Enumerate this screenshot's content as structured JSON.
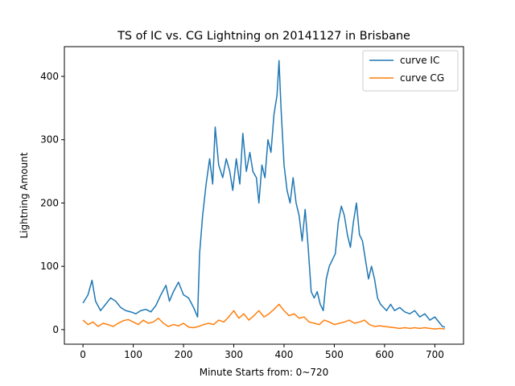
{
  "chart_data": {
    "type": "line",
    "title": "TS of IC vs. CG Lightning on 20141127 in Brisbane",
    "xlabel": "Minute Starts from: 0~720",
    "ylabel": "Lightning Amount",
    "xlim": [
      -37,
      757
    ],
    "ylim": [
      -23,
      447
    ],
    "xticks": [
      0,
      100,
      200,
      300,
      400,
      500,
      600,
      700
    ],
    "yticks": [
      0,
      100,
      200,
      300,
      400
    ],
    "grid": false,
    "legend": "top-right",
    "series": [
      {
        "name": "curve IC",
        "color": "#1f77b4",
        "points": [
          [
            0,
            42
          ],
          [
            10,
            55
          ],
          [
            18,
            78
          ],
          [
            25,
            45
          ],
          [
            35,
            30
          ],
          [
            45,
            40
          ],
          [
            55,
            50
          ],
          [
            65,
            45
          ],
          [
            75,
            35
          ],
          [
            85,
            30
          ],
          [
            95,
            28
          ],
          [
            105,
            25
          ],
          [
            115,
            30
          ],
          [
            125,
            32
          ],
          [
            135,
            28
          ],
          [
            145,
            38
          ],
          [
            155,
            55
          ],
          [
            165,
            70
          ],
          [
            172,
            45
          ],
          [
            180,
            60
          ],
          [
            190,
            75
          ],
          [
            200,
            55
          ],
          [
            210,
            50
          ],
          [
            220,
            35
          ],
          [
            228,
            20
          ],
          [
            232,
            120
          ],
          [
            238,
            180
          ],
          [
            245,
            230
          ],
          [
            252,
            270
          ],
          [
            258,
            230
          ],
          [
            263,
            320
          ],
          [
            270,
            260
          ],
          [
            278,
            240
          ],
          [
            285,
            270
          ],
          [
            292,
            250
          ],
          [
            298,
            220
          ],
          [
            305,
            270
          ],
          [
            312,
            230
          ],
          [
            318,
            310
          ],
          [
            325,
            250
          ],
          [
            332,
            280
          ],
          [
            338,
            250
          ],
          [
            345,
            240
          ],
          [
            350,
            200
          ],
          [
            356,
            260
          ],
          [
            362,
            240
          ],
          [
            368,
            300
          ],
          [
            374,
            280
          ],
          [
            380,
            340
          ],
          [
            386,
            370
          ],
          [
            390,
            425
          ],
          [
            394,
            350
          ],
          [
            400,
            260
          ],
          [
            406,
            220
          ],
          [
            412,
            200
          ],
          [
            418,
            240
          ],
          [
            424,
            200
          ],
          [
            430,
            180
          ],
          [
            436,
            140
          ],
          [
            442,
            190
          ],
          [
            448,
            130
          ],
          [
            454,
            60
          ],
          [
            460,
            50
          ],
          [
            466,
            60
          ],
          [
            472,
            40
          ],
          [
            478,
            30
          ],
          [
            484,
            80
          ],
          [
            490,
            100
          ],
          [
            496,
            110
          ],
          [
            502,
            120
          ],
          [
            508,
            170
          ],
          [
            514,
            195
          ],
          [
            520,
            180
          ],
          [
            526,
            150
          ],
          [
            532,
            130
          ],
          [
            538,
            170
          ],
          [
            544,
            200
          ],
          [
            550,
            150
          ],
          [
            556,
            140
          ],
          [
            562,
            110
          ],
          [
            568,
            80
          ],
          [
            574,
            100
          ],
          [
            580,
            80
          ],
          [
            586,
            50
          ],
          [
            592,
            40
          ],
          [
            598,
            35
          ],
          [
            604,
            30
          ],
          [
            612,
            40
          ],
          [
            620,
            30
          ],
          [
            630,
            35
          ],
          [
            640,
            28
          ],
          [
            650,
            25
          ],
          [
            660,
            30
          ],
          [
            670,
            20
          ],
          [
            680,
            25
          ],
          [
            690,
            15
          ],
          [
            700,
            20
          ],
          [
            710,
            10
          ],
          [
            715,
            5
          ],
          [
            720,
            4
          ]
        ]
      },
      {
        "name": "curve CG",
        "color": "#ff7f0e",
        "points": [
          [
            0,
            15
          ],
          [
            10,
            8
          ],
          [
            20,
            12
          ],
          [
            30,
            5
          ],
          [
            40,
            10
          ],
          [
            50,
            8
          ],
          [
            60,
            5
          ],
          [
            70,
            10
          ],
          [
            80,
            14
          ],
          [
            90,
            16
          ],
          [
            100,
            12
          ],
          [
            110,
            8
          ],
          [
            120,
            15
          ],
          [
            130,
            10
          ],
          [
            140,
            12
          ],
          [
            150,
            18
          ],
          [
            160,
            10
          ],
          [
            170,
            5
          ],
          [
            180,
            8
          ],
          [
            190,
            6
          ],
          [
            200,
            10
          ],
          [
            210,
            4
          ],
          [
            220,
            3
          ],
          [
            230,
            5
          ],
          [
            240,
            8
          ],
          [
            250,
            10
          ],
          [
            260,
            8
          ],
          [
            270,
            15
          ],
          [
            280,
            12
          ],
          [
            290,
            20
          ],
          [
            300,
            30
          ],
          [
            310,
            18
          ],
          [
            320,
            25
          ],
          [
            330,
            15
          ],
          [
            340,
            22
          ],
          [
            350,
            30
          ],
          [
            360,
            20
          ],
          [
            370,
            25
          ],
          [
            380,
            32
          ],
          [
            390,
            40
          ],
          [
            400,
            30
          ],
          [
            410,
            22
          ],
          [
            420,
            25
          ],
          [
            430,
            18
          ],
          [
            440,
            20
          ],
          [
            450,
            12
          ],
          [
            460,
            10
          ],
          [
            470,
            8
          ],
          [
            480,
            15
          ],
          [
            490,
            12
          ],
          [
            500,
            8
          ],
          [
            510,
            10
          ],
          [
            520,
            12
          ],
          [
            530,
            15
          ],
          [
            540,
            10
          ],
          [
            550,
            12
          ],
          [
            560,
            15
          ],
          [
            570,
            8
          ],
          [
            580,
            5
          ],
          [
            590,
            6
          ],
          [
            600,
            5
          ],
          [
            610,
            4
          ],
          [
            620,
            3
          ],
          [
            630,
            2
          ],
          [
            640,
            3
          ],
          [
            650,
            2
          ],
          [
            660,
            3
          ],
          [
            670,
            2
          ],
          [
            680,
            3
          ],
          [
            690,
            2
          ],
          [
            700,
            1
          ],
          [
            710,
            2
          ],
          [
            720,
            1
          ]
        ]
      }
    ]
  }
}
